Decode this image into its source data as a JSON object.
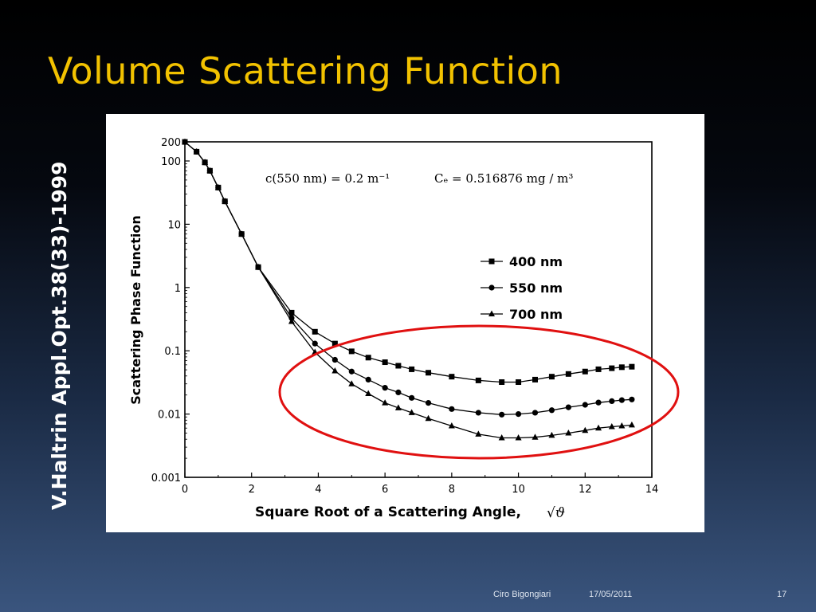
{
  "slide": {
    "title": "Volume Scattering Function",
    "citation": "V.Haltrin   Appl.Opt.38(33)-1999",
    "footer_author": "Ciro Bigongiari",
    "footer_date": "17/05/2011",
    "page_number": "17"
  },
  "colors": {
    "title": "#f2c200",
    "highlight_ellipse": "#e01010"
  },
  "chart_data": {
    "type": "line",
    "annotation_c": "c(550 nm) = 0.2  m⁻¹",
    "annotation_cc": "Cₑ = 0.516876  mg / m³",
    "xlabel": "Square Root of a Scattering Angle,",
    "xlabel_symbol": "√ϑ",
    "ylabel": "Scattering Phase Function",
    "xlim": [
      0,
      14
    ],
    "ylim": [
      0.001,
      200
    ],
    "yscale": "log",
    "x_ticks": [
      "0",
      "2",
      "4",
      "6",
      "8",
      "10",
      "12",
      "14"
    ],
    "y_ticks": [
      "200",
      "100",
      "10",
      "1",
      "0.1",
      "0.01",
      "0.001"
    ],
    "legend_position": "right",
    "highlight": "red ellipse around the curves for x between about 3 and 14",
    "x": [
      0,
      0.35,
      0.6,
      0.75,
      1.0,
      1.2,
      1.7,
      2.2,
      3.2,
      3.9,
      4.5,
      5.0,
      5.5,
      6.0,
      6.4,
      6.8,
      7.3,
      8.0,
      8.8,
      9.5,
      10.0,
      10.5,
      11.0,
      11.5,
      12.0,
      12.4,
      12.8,
      13.1,
      13.4
    ],
    "series": [
      {
        "name": "400 nm",
        "marker": "square",
        "values": [
          200,
          140,
          95,
          70,
          38,
          23,
          7,
          2.1,
          0.4,
          0.2,
          0.13,
          0.098,
          0.078,
          0.066,
          0.058,
          0.051,
          0.045,
          0.039,
          0.034,
          0.032,
          0.032,
          0.035,
          0.039,
          0.043,
          0.047,
          0.051,
          0.053,
          0.055,
          0.056
        ]
      },
      {
        "name": "550 nm",
        "marker": "circle",
        "values": [
          200,
          140,
          95,
          70,
          38,
          23,
          7,
          2.1,
          0.33,
          0.13,
          0.072,
          0.047,
          0.035,
          0.026,
          0.022,
          0.018,
          0.015,
          0.012,
          0.0105,
          0.0098,
          0.01,
          0.0105,
          0.0115,
          0.0128,
          0.014,
          0.0152,
          0.016,
          0.0166,
          0.017
        ]
      },
      {
        "name": "700 nm",
        "marker": "triangle",
        "values": [
          200,
          140,
          95,
          70,
          38,
          23,
          7,
          2.1,
          0.29,
          0.095,
          0.048,
          0.03,
          0.021,
          0.015,
          0.0125,
          0.0105,
          0.0085,
          0.0065,
          0.0048,
          0.0042,
          0.0042,
          0.0043,
          0.0046,
          0.005,
          0.0055,
          0.006,
          0.0063,
          0.0065,
          0.0067
        ]
      }
    ]
  }
}
